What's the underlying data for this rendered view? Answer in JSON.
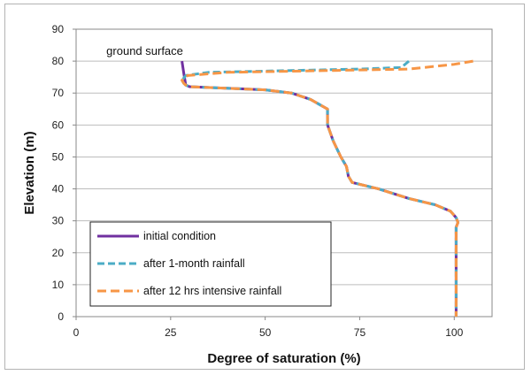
{
  "chart_data": {
    "type": "line",
    "title": "",
    "xlabel": "Degree of saturation (%)",
    "ylabel": "Elevation (m)",
    "xlim": [
      0,
      110
    ],
    "ylim": [
      0,
      90
    ],
    "xticks": [
      0,
      25,
      50,
      75,
      100
    ],
    "yticks": [
      0,
      10,
      20,
      30,
      40,
      50,
      60,
      70,
      80,
      90
    ],
    "grid": "horizontal",
    "legend_position": "bottom-left",
    "annotations": [
      {
        "text": "ground surface",
        "x": 8,
        "y": 82
      }
    ],
    "series": [
      {
        "name": "initial condition",
        "color": "#7030a0",
        "style": "solid",
        "points": [
          [
            28,
            80
          ],
          [
            28.5,
            76
          ],
          [
            29,
            72.5
          ],
          [
            30,
            72
          ],
          [
            40,
            71.5
          ],
          [
            50,
            71
          ],
          [
            57,
            70
          ],
          [
            62,
            68
          ],
          [
            65,
            66
          ],
          [
            66.5,
            65
          ],
          [
            66.5,
            60
          ],
          [
            68,
            55
          ],
          [
            70,
            50
          ],
          [
            71.5,
            47
          ],
          [
            72,
            44
          ],
          [
            73,
            42
          ],
          [
            80,
            40
          ],
          [
            88,
            37
          ],
          [
            95,
            35
          ],
          [
            99,
            33
          ],
          [
            100.5,
            31
          ],
          [
            101,
            29.5
          ],
          [
            100.5,
            28
          ],
          [
            100.5,
            20
          ],
          [
            100.5,
            10
          ],
          [
            100.5,
            0
          ]
        ]
      },
      {
        "name": "after 1-month rainfall",
        "color": "#4bacc6",
        "style": "dashed",
        "points": [
          [
            88,
            80
          ],
          [
            86,
            78
          ],
          [
            75,
            77.5
          ],
          [
            55,
            77
          ],
          [
            35,
            76.5
          ],
          [
            29,
            75.5
          ],
          [
            28,
            74
          ],
          [
            28.5,
            73
          ],
          [
            29,
            72.5
          ],
          [
            30,
            72
          ],
          [
            40,
            71.5
          ],
          [
            50,
            71
          ],
          [
            57,
            70
          ],
          [
            62,
            68
          ],
          [
            65,
            66
          ],
          [
            66.5,
            65
          ],
          [
            66.5,
            60
          ],
          [
            68,
            55
          ],
          [
            70,
            50
          ],
          [
            71.5,
            47
          ],
          [
            72,
            44
          ],
          [
            73,
            42
          ],
          [
            80,
            40
          ],
          [
            88,
            37
          ],
          [
            95,
            35
          ],
          [
            99,
            33
          ],
          [
            100.5,
            31
          ],
          [
            101,
            29.5
          ],
          [
            100.5,
            28
          ],
          [
            100.5,
            20
          ],
          [
            100.5,
            10
          ],
          [
            100.5,
            0
          ]
        ]
      },
      {
        "name": "after 12 hrs intensive rainfall",
        "color": "#f79646",
        "style": "dashed",
        "points": [
          [
            105,
            80
          ],
          [
            100,
            79
          ],
          [
            88,
            77.5
          ],
          [
            65,
            77
          ],
          [
            40,
            76.5
          ],
          [
            29.5,
            75.5
          ],
          [
            28,
            74
          ],
          [
            28.5,
            73
          ],
          [
            29,
            72.5
          ],
          [
            30,
            72
          ],
          [
            40,
            71.5
          ],
          [
            50,
            71
          ],
          [
            57,
            70
          ],
          [
            62,
            68
          ],
          [
            65,
            66
          ],
          [
            66.5,
            65
          ],
          [
            66.5,
            60
          ],
          [
            68,
            55
          ],
          [
            70,
            50
          ],
          [
            71.5,
            47
          ],
          [
            72,
            44
          ],
          [
            73,
            42
          ],
          [
            80,
            40
          ],
          [
            88,
            37
          ],
          [
            95,
            35
          ],
          [
            99,
            33
          ],
          [
            100.5,
            31
          ],
          [
            101,
            29.5
          ],
          [
            100.5,
            28
          ],
          [
            100.5,
            20
          ],
          [
            100.5,
            10
          ],
          [
            100.5,
            0
          ]
        ]
      }
    ]
  }
}
